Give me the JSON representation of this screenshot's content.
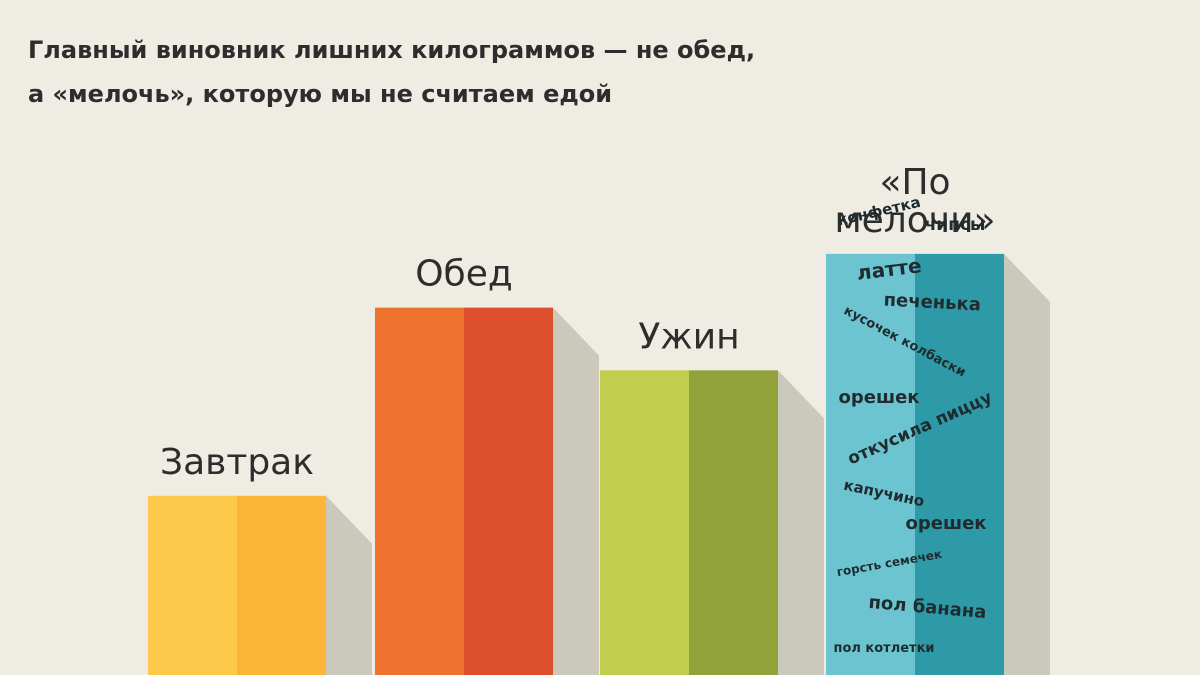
{
  "title": {
    "line1": "Главный виновник лишних килограммов — не обед,",
    "line2": "а «мелочь», которую мы не считаем едой"
  },
  "chart_data": {
    "type": "bar",
    "title": "Главный виновник лишних килограммов — не обед, а «мелочь», которую мы не считаем едой",
    "categories": [
      "Завтрак",
      "Обед",
      "Ужин",
      "«По мелочи»"
    ],
    "category_lines": [
      [
        "Завтрак"
      ],
      [
        "Обед"
      ],
      [
        "Ужин"
      ],
      [
        "«По",
        "мелочи»"
      ]
    ],
    "values": [
      2.0,
      4.1,
      3.4,
      4.7
    ],
    "ylim": [
      0,
      6.25
    ],
    "grid": false,
    "legend": "none",
    "xlabel": "",
    "ylabel": "",
    "colors": [
      {
        "left": "#fcc94a",
        "right": "#fbb537"
      },
      {
        "left": "#ef712e",
        "right": "#dd4f2c"
      },
      {
        "left": "#c1cd4d",
        "right": "#92a23b"
      },
      {
        "left": "#6cc4d0",
        "right": "#2e9aa8"
      }
    ],
    "shadow_color": "#cbc8bc",
    "snack_labels": [
      "конфетка",
      "чипсы",
      "латте",
      "печенька",
      "кусочек колбаски",
      "орешек",
      "откусила пиццу",
      "капучино",
      "орешек",
      "горсть семечек",
      "пол банана",
      "пол котлетки"
    ]
  }
}
